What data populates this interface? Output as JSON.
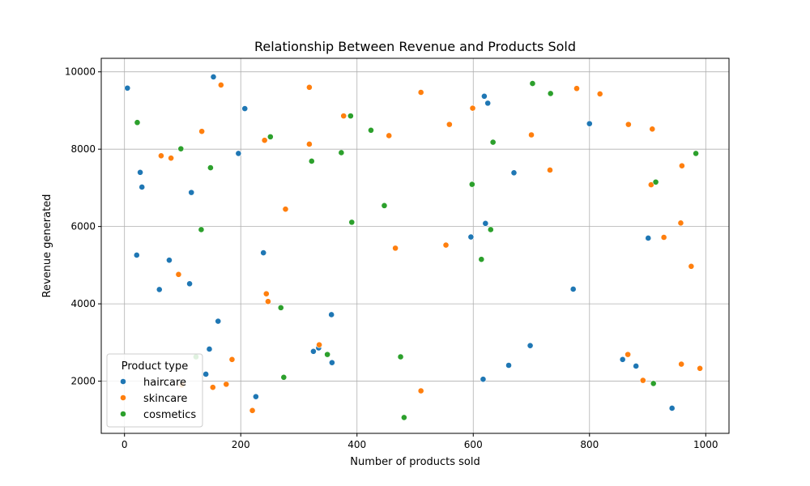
{
  "chart_data": {
    "type": "scatter",
    "title": "Relationship Between Revenue and Products Sold",
    "xlabel": "Number of products sold",
    "ylabel": "Revenue generated",
    "xlim": [
      -40,
      1040
    ],
    "ylim": [
      650,
      10350
    ],
    "xticks": [
      0,
      200,
      400,
      600,
      800,
      1000
    ],
    "yticks": [
      2000,
      4000,
      6000,
      8000,
      10000
    ],
    "grid": true,
    "legend": {
      "title": "Product type",
      "position": "lower-left"
    },
    "series": [
      {
        "name": "haircare",
        "color": "#1f77b4",
        "points": [
          [
            5,
            9580
          ],
          [
            153,
            9870
          ],
          [
            207,
            9050
          ],
          [
            196,
            7890
          ],
          [
            27,
            7400
          ],
          [
            30,
            7020
          ],
          [
            115,
            6880
          ],
          [
            21,
            5260
          ],
          [
            77,
            5130
          ],
          [
            239,
            5320
          ],
          [
            60,
            4370
          ],
          [
            112,
            4520
          ],
          [
            161,
            3550
          ],
          [
            146,
            2830
          ],
          [
            140,
            2180
          ],
          [
            226,
            1600
          ],
          [
            325,
            2770
          ],
          [
            334,
            2860
          ],
          [
            356,
            3720
          ],
          [
            357,
            2480
          ],
          [
            619,
            9370
          ],
          [
            625,
            9190
          ],
          [
            800,
            8660
          ],
          [
            670,
            7390
          ],
          [
            621,
            6080
          ],
          [
            596,
            5730
          ],
          [
            772,
            4380
          ],
          [
            698,
            2920
          ],
          [
            661,
            2410
          ],
          [
            617,
            2050
          ],
          [
            857,
            2560
          ],
          [
            880,
            2390
          ],
          [
            901,
            5700
          ],
          [
            942,
            1300
          ]
        ]
      },
      {
        "name": "skincare",
        "color": "#ff7f0e",
        "points": [
          [
            166,
            9660
          ],
          [
            133,
            8460
          ],
          [
            63,
            7830
          ],
          [
            80,
            7770
          ],
          [
            93,
            4760
          ],
          [
            99,
            1900
          ],
          [
            152,
            1840
          ],
          [
            175,
            1920
          ],
          [
            185,
            2560
          ],
          [
            220,
            1240
          ],
          [
            241,
            8230
          ],
          [
            277,
            6450
          ],
          [
            244,
            4260
          ],
          [
            247,
            4060
          ],
          [
            318,
            9600
          ],
          [
            318,
            8130
          ],
          [
            377,
            8860
          ],
          [
            335,
            2940
          ],
          [
            455,
            8350
          ],
          [
            466,
            5440
          ],
          [
            510,
            9470
          ],
          [
            510,
            1750
          ],
          [
            559,
            8640
          ],
          [
            553,
            5520
          ],
          [
            599,
            9060
          ],
          [
            700,
            8370
          ],
          [
            732,
            7460
          ],
          [
            778,
            9570
          ],
          [
            818,
            9430
          ],
          [
            867,
            8640
          ],
          [
            908,
            8520
          ],
          [
            906,
            7080
          ],
          [
            959,
            7570
          ],
          [
            957,
            6090
          ],
          [
            928,
            5720
          ],
          [
            975,
            4970
          ],
          [
            866,
            2690
          ],
          [
            892,
            2020
          ],
          [
            958,
            2440
          ],
          [
            990,
            2330
          ]
        ]
      },
      {
        "name": "cosmetics",
        "color": "#2ca02c",
        "points": [
          [
            22,
            8690
          ],
          [
            97,
            8010
          ],
          [
            148,
            7520
          ],
          [
            132,
            5920
          ],
          [
            123,
            2630
          ],
          [
            251,
            8320
          ],
          [
            269,
            3900
          ],
          [
            274,
            2100
          ],
          [
            322,
            7690
          ],
          [
            373,
            7910
          ],
          [
            389,
            8860
          ],
          [
            391,
            6110
          ],
          [
            349,
            2690
          ],
          [
            424,
            8490
          ],
          [
            447,
            6540
          ],
          [
            475,
            2630
          ],
          [
            481,
            1060
          ],
          [
            702,
            9700
          ],
          [
            733,
            9440
          ],
          [
            634,
            8180
          ],
          [
            598,
            7090
          ],
          [
            630,
            5920
          ],
          [
            614,
            5150
          ],
          [
            914,
            7150
          ],
          [
            983,
            7890
          ],
          [
            910,
            1940
          ]
        ]
      }
    ]
  }
}
